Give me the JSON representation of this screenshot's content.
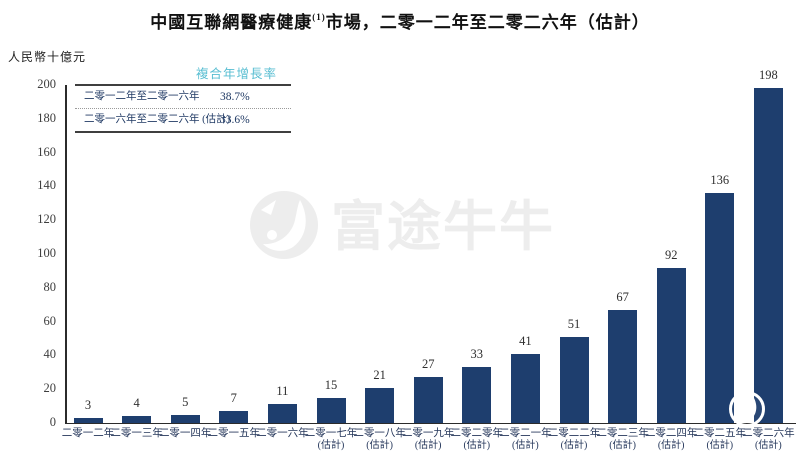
{
  "title": {
    "prefix": "中國互聯網醫療健康",
    "superscript": "(1)",
    "suffix": "市場，二零一二年至二零二六年（估計）"
  },
  "y_axis_unit": "人民幣十億元",
  "cagr_table": {
    "header": "複合年增長率",
    "rows": [
      {
        "label": "二零一二年至二零一六年",
        "value": "38.7%"
      },
      {
        "label": "二零一六年至二零二六年 (估計)",
        "value": "33.6%"
      }
    ]
  },
  "watermark": {
    "text": "富途牛牛"
  },
  "chart_data": {
    "type": "bar",
    "title": "中國互聯網醫療健康(1)市場，二零一二年至二零二六年（估計）",
    "ylabel": "人民幣十億元",
    "ylim": [
      0,
      200
    ],
    "ytick_step": 20,
    "grid": false,
    "legend_position": "none",
    "bar_color": "#1e3e6e",
    "categories": [
      "二零一二年",
      "二零一三年",
      "二零一四年",
      "二零一五年",
      "二零一六年",
      "二零一七年",
      "二零一八年",
      "二零一九年",
      "二零二零年",
      "二零二一年",
      "二零二二年",
      "二零二三年",
      "二零二四年",
      "二零二五年",
      "二零二六年"
    ],
    "estimated_flags": [
      false,
      false,
      false,
      false,
      false,
      true,
      true,
      true,
      true,
      true,
      true,
      true,
      true,
      true,
      true
    ],
    "estimate_suffix": "(估計)",
    "values": [
      3,
      4,
      5,
      7,
      11,
      15,
      21,
      27,
      33,
      41,
      51,
      67,
      92,
      136,
      198
    ],
    "annotations": [
      {
        "period": "二零一二年至二零一六年",
        "cagr": "38.7%"
      },
      {
        "period": "二零一六年至二零二六年 (估計)",
        "cagr": "33.6%"
      }
    ]
  }
}
